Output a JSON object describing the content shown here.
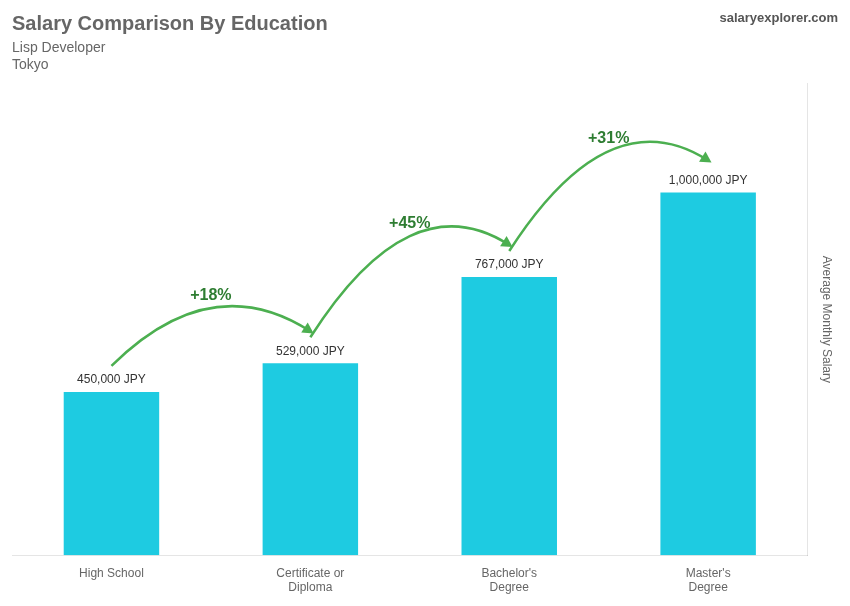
{
  "chart_data": {
    "type": "bar",
    "title": "Salary Comparison By Education",
    "subtitle": [
      "Lisp Developer",
      "Tokyo"
    ],
    "ylabel": "Average Monthly Salary",
    "categories": [
      "High School",
      "Certificate or\nDiploma",
      "Bachelor's\nDegree",
      "Master's\nDegree"
    ],
    "values": [
      450000,
      529000,
      767000,
      1000000
    ],
    "value_labels": [
      "450,000 JPY",
      "529,000 JPY",
      "767,000 JPY",
      "1,000,000 JPY"
    ],
    "data_labels": true,
    "color": "#1ecbe1",
    "ylim": [
      0,
      1300000
    ],
    "grid": false,
    "tick_labels": "x",
    "annotations": [
      {
        "text": "+18%",
        "from": "High School",
        "to": "Certificate or\nDiploma"
      },
      {
        "text": "+45%",
        "from": "Certificate or\nDiploma",
        "to": "Bachelor's\nDegree"
      },
      {
        "text": "+31%",
        "from": "Bachelor's\nDegree",
        "to": "Master's\nDegree"
      },
      {
        "text": "salaryexplorer.com"
      }
    ]
  }
}
